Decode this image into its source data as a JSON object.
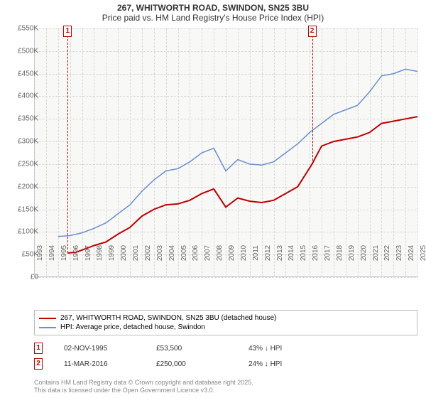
{
  "title": "267, WHITWORTH ROAD, SWINDON, SN25 3BU",
  "subtitle": "Price paid vs. HM Land Registry's House Price Index (HPI)",
  "chart": {
    "type": "line",
    "background_color": "#f8f8f6",
    "grid_color": "#d0d0d0",
    "axis_color": "#c0c0c0",
    "x_years": [
      1993,
      1994,
      1995,
      1996,
      1997,
      1998,
      1999,
      2000,
      2001,
      2002,
      2003,
      2004,
      2005,
      2006,
      2007,
      2008,
      2009,
      2010,
      2011,
      2012,
      2013,
      2014,
      2015,
      2016,
      2017,
      2018,
      2019,
      2020,
      2021,
      2022,
      2023,
      2024,
      2025
    ],
    "xlim": [
      1993,
      2025
    ],
    "y_ticks": [
      0,
      50,
      100,
      150,
      200,
      250,
      300,
      350,
      400,
      450,
      500,
      550
    ],
    "y_tick_labels": [
      "£0",
      "£50K",
      "£100K",
      "£150K",
      "£200K",
      "£250K",
      "£300K",
      "£350K",
      "£400K",
      "£450K",
      "£500K",
      "£550K"
    ],
    "ylim": [
      0,
      550
    ],
    "series": [
      {
        "name": "property_price",
        "label": "267, WHITWORTH ROAD, SWINDON, SN25 3BU (detached house)",
        "color": "#c00000",
        "line_width": 2,
        "points": [
          [
            1995.8,
            53.5
          ],
          [
            1996.5,
            55
          ],
          [
            1997,
            60
          ],
          [
            1998,
            70
          ],
          [
            1999,
            78
          ],
          [
            2000,
            95
          ],
          [
            2001,
            110
          ],
          [
            2002,
            135
          ],
          [
            2003,
            150
          ],
          [
            2004,
            160
          ],
          [
            2005,
            162
          ],
          [
            2006,
            170
          ],
          [
            2007,
            185
          ],
          [
            2008,
            195
          ],
          [
            2009,
            155
          ],
          [
            2010,
            175
          ],
          [
            2011,
            168
          ],
          [
            2012,
            165
          ],
          [
            2013,
            170
          ],
          [
            2014,
            185
          ],
          [
            2015,
            200
          ],
          [
            2016.2,
            250
          ],
          [
            2016.8,
            280
          ],
          [
            2017,
            290
          ],
          [
            2018,
            300
          ],
          [
            2019,
            305
          ],
          [
            2020,
            310
          ],
          [
            2021,
            320
          ],
          [
            2022,
            340
          ],
          [
            2023,
            345
          ],
          [
            2024,
            350
          ],
          [
            2025,
            355
          ]
        ]
      },
      {
        "name": "hpi",
        "label": "HPI: Average price, detached house, Swindon",
        "color": "#6a8fd0",
        "line_width": 1.5,
        "points": [
          [
            1995,
            90
          ],
          [
            1996,
            92
          ],
          [
            1997,
            98
          ],
          [
            1998,
            108
          ],
          [
            1999,
            120
          ],
          [
            2000,
            140
          ],
          [
            2001,
            160
          ],
          [
            2002,
            190
          ],
          [
            2003,
            215
          ],
          [
            2004,
            235
          ],
          [
            2005,
            240
          ],
          [
            2006,
            255
          ],
          [
            2007,
            275
          ],
          [
            2008,
            285
          ],
          [
            2009,
            235
          ],
          [
            2010,
            260
          ],
          [
            2011,
            250
          ],
          [
            2012,
            248
          ],
          [
            2013,
            255
          ],
          [
            2014,
            275
          ],
          [
            2015,
            295
          ],
          [
            2016,
            320
          ],
          [
            2017,
            340
          ],
          [
            2018,
            360
          ],
          [
            2019,
            370
          ],
          [
            2020,
            380
          ],
          [
            2021,
            410
          ],
          [
            2022,
            445
          ],
          [
            2023,
            450
          ],
          [
            2024,
            460
          ],
          [
            2025,
            455
          ]
        ]
      }
    ],
    "markers": [
      {
        "n": "1",
        "x": 1995.8,
        "y": 53.5
      },
      {
        "n": "2",
        "x": 2016.2,
        "y": 250
      }
    ]
  },
  "legend": {
    "items": [
      {
        "color": "#c00000",
        "label": "267, WHITWORTH ROAD, SWINDON, SN25 3BU (detached house)"
      },
      {
        "color": "#6a8fd0",
        "label": "HPI: Average price, detached house, Swindon"
      }
    ]
  },
  "sales": [
    {
      "n": "1",
      "date": "02-NOV-1995",
      "price": "£53,500",
      "diff": "43% ↓ HPI"
    },
    {
      "n": "2",
      "date": "11-MAR-2016",
      "price": "£250,000",
      "diff": "24% ↓ HPI"
    }
  ],
  "footer": {
    "line1": "Contains HM Land Registry data © Crown copyright and database right 2025.",
    "line2": "This data is licensed under the Open Government Licence v3.0."
  }
}
